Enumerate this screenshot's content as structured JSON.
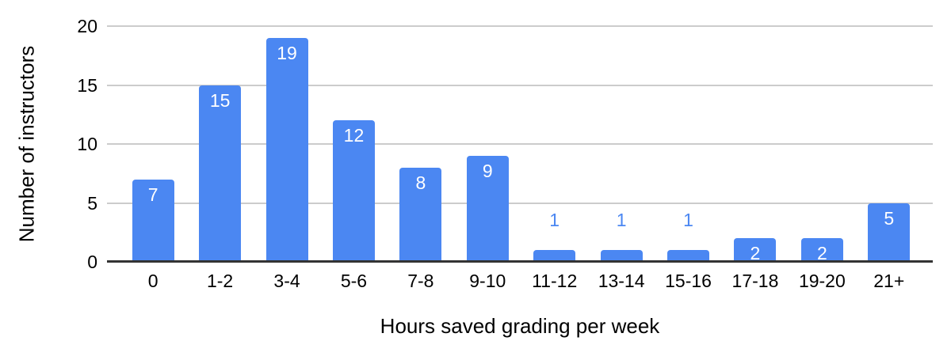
{
  "chart_data": {
    "type": "bar",
    "title": "",
    "xlabel": "Hours saved grading per week",
    "ylabel": "Number of instructors",
    "categories": [
      "0",
      "1-2",
      "3-4",
      "5-6",
      "7-8",
      "9-10",
      "11-12",
      "13-14",
      "15-16",
      "17-18",
      "19-20",
      "21+"
    ],
    "values": [
      7,
      15,
      19,
      12,
      8,
      9,
      1,
      1,
      1,
      2,
      2,
      5
    ],
    "ylim": [
      0,
      20
    ],
    "yticks": [
      0,
      5,
      10,
      15,
      20
    ],
    "grid": true,
    "legend": "none",
    "label_above_threshold": 2,
    "colors": {
      "bar": "#4b87f2",
      "label_inside": "#ffffff",
      "label_above": "#4b87f2",
      "gridline": "#cccccc",
      "axis_line": "#333333",
      "text": "#000000"
    }
  }
}
